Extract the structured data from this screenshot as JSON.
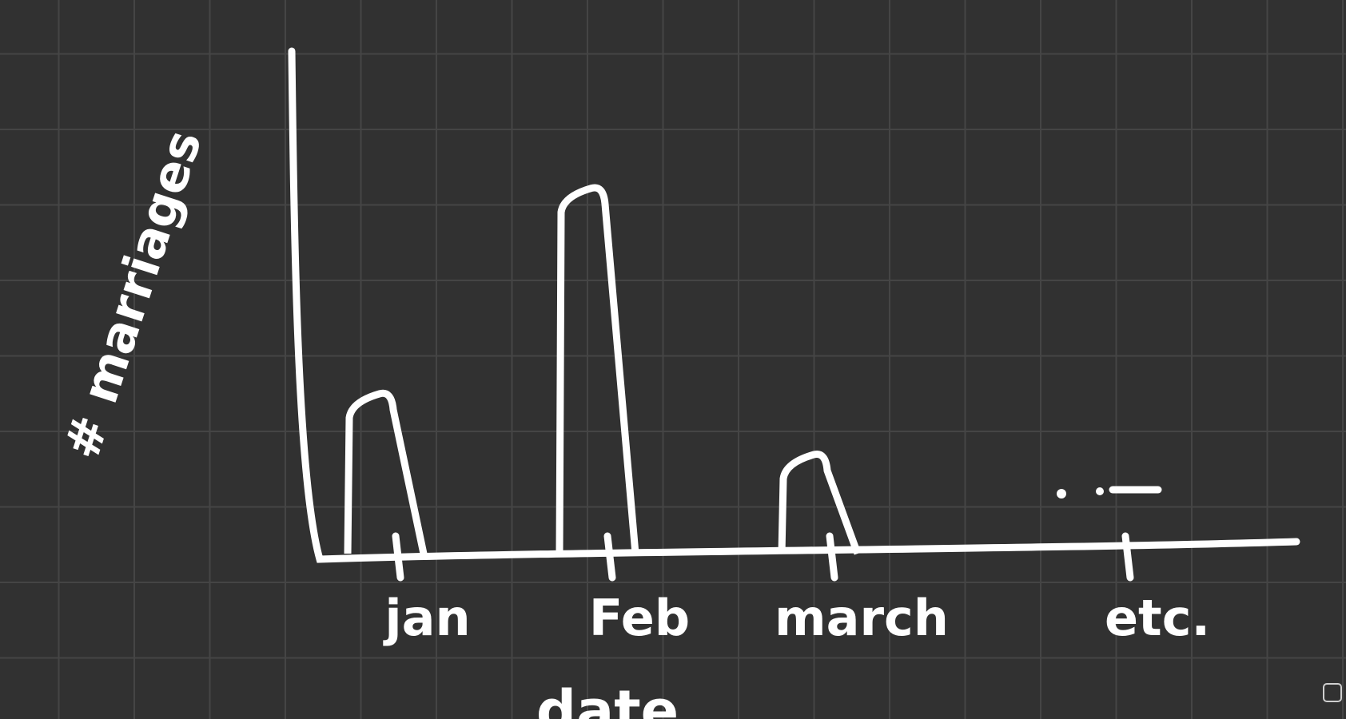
{
  "chart_data": {
    "type": "bar",
    "x_label": "date",
    "y_label": "# marriages",
    "categories": [
      "jan",
      "Feb",
      "march",
      "etc."
    ],
    "values": [
      2.1,
      4.8,
      1.3,
      null
    ],
    "color": "#ffffff",
    "ylim": [
      0,
      6.6
    ]
  }
}
